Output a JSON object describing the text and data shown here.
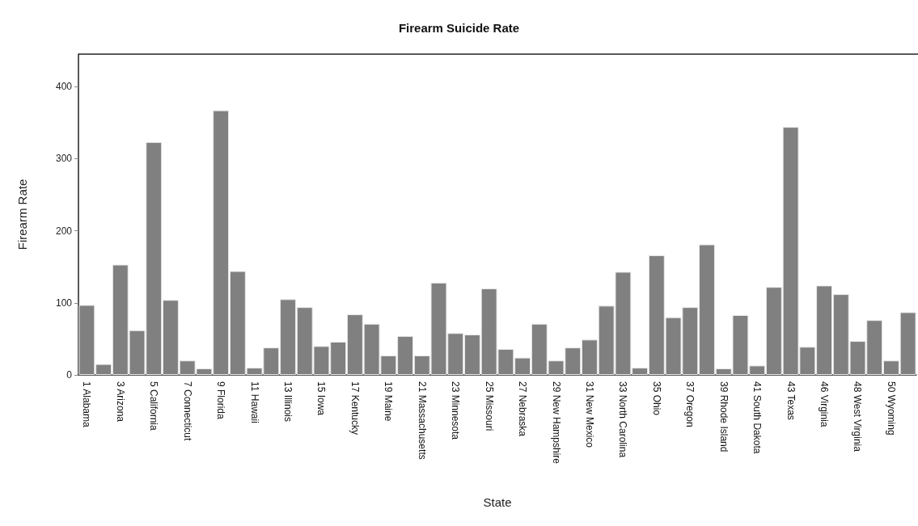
{
  "chart_data": {
    "type": "bar",
    "title": "Firearm Suicide Rate",
    "xlabel": "State",
    "ylabel": "Firearm Rate",
    "categories": [
      "1 Alabama",
      null,
      "3 Arizona",
      null,
      "5 California",
      null,
      "7 Connecticut",
      null,
      "9 Florida",
      null,
      "11 Hawaii",
      null,
      "13 Illinois",
      null,
      "15 Iowa",
      null,
      "17 Kentucky",
      null,
      "19 Maine",
      null,
      "21 Massachusetts",
      null,
      "23 Minnesota",
      null,
      "25 Missouri",
      null,
      "27 Nebraska",
      null,
      "29 New Hampshire",
      null,
      "31 New Mexico",
      null,
      "33 North Carolina",
      null,
      "35 Ohio",
      null,
      "37 Oregon",
      null,
      "39 Rhode Island",
      null,
      "41 South Dakota",
      null,
      "43 Texas",
      null,
      "46 Virginia",
      null,
      "48 West Virginia",
      null,
      "50 Wyoming",
      null
    ],
    "values": [
      97,
      15,
      153,
      62,
      323,
      104,
      20,
      9,
      367,
      144,
      10,
      38,
      105,
      94,
      40,
      46,
      84,
      71,
      27,
      54,
      27,
      128,
      58,
      56,
      120,
      36,
      24,
      71,
      20,
      38,
      49,
      96,
      143,
      10,
      166,
      80,
      94,
      181,
      9,
      83,
      13,
      122,
      344,
      39,
      124,
      112,
      47,
      76,
      20,
      87
    ],
    "color": "#808080",
    "ylim": [
      0,
      445
    ],
    "yticks": [
      0,
      100,
      200,
      300,
      400
    ],
    "grid": false
  }
}
